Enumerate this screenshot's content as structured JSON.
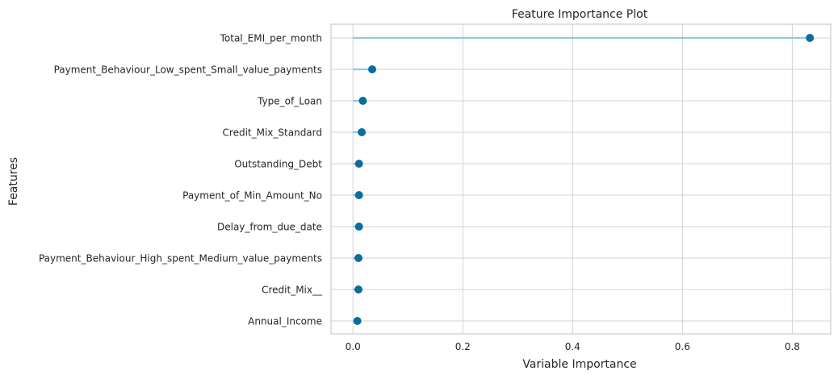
{
  "chart_data": {
    "type": "lollipop",
    "title": "Feature Importance Plot",
    "xlabel": "Variable Importance",
    "ylabel": "Features",
    "xlim": [
      -0.04,
      0.87
    ],
    "xticks": [
      0.0,
      0.2,
      0.4,
      0.6,
      0.8
    ],
    "xtick_labels": [
      "0.0",
      "0.2",
      "0.4",
      "0.6",
      "0.8"
    ],
    "grid": true,
    "categories": [
      "Total_EMI_per_month",
      "Payment_Behaviour_Low_spent_Small_value_payments",
      "Type_of_Loan",
      "Credit_Mix_Standard",
      "Outstanding_Debt",
      "Payment_of_Min_Amount_No",
      "Delay_from_due_date",
      "Payment_Behaviour_High_spent_Medium_value_payments",
      "Credit_Mix__",
      "Annual_Income"
    ],
    "values": [
      0.832,
      0.035,
      0.018,
      0.016,
      0.011,
      0.011,
      0.011,
      0.01,
      0.01,
      0.008
    ],
    "colors": {
      "stem": "#92c6e2",
      "marker": "#0a6d9c",
      "grid": "#cfd3d7",
      "axes_edge": "#c8cbcf",
      "background": "#ffffff"
    }
  }
}
